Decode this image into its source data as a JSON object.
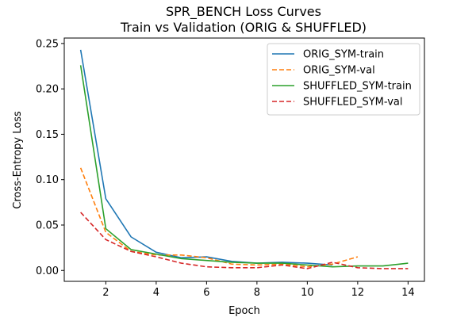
{
  "chart_data": {
    "type": "line",
    "title_line1": "SPR_BENCH Loss Curves",
    "title_line2": "Train vs Validation (ORIG & SHUFFLED)",
    "xlabel": "Epoch",
    "ylabel": "Cross-Entropy Loss",
    "xlim": [
      0.35,
      14.65
    ],
    "ylim": [
      -0.012,
      0.256
    ],
    "xticks": [
      2,
      4,
      6,
      8,
      10,
      12,
      14
    ],
    "yticks": [
      0.0,
      0.05,
      0.1,
      0.15,
      0.2,
      0.25
    ],
    "ytick_labels": [
      "0.00",
      "0.05",
      "0.10",
      "0.15",
      "0.20",
      "0.25"
    ],
    "grid": false,
    "legend_position": "upper right",
    "series": [
      {
        "name": "ORIG_SYM-train",
        "color": "#1f77b4",
        "dash": "solid",
        "x": [
          1,
          2,
          3,
          4,
          5,
          6,
          7,
          8,
          9,
          10,
          11
        ],
        "y": [
          0.243,
          0.079,
          0.037,
          0.02,
          0.014,
          0.015,
          0.01,
          0.008,
          0.009,
          0.008,
          0.006
        ]
      },
      {
        "name": "ORIG_SYM-val",
        "color": "#ff7f0e",
        "dash": "dashed",
        "x": [
          1,
          2,
          3,
          4,
          5,
          6,
          7,
          8,
          9,
          10,
          11,
          12
        ],
        "y": [
          0.113,
          0.042,
          0.021,
          0.017,
          0.017,
          0.014,
          0.007,
          0.006,
          0.007,
          0.004,
          0.007,
          0.015
        ]
      },
      {
        "name": "SHUFFLED_SYM-train",
        "color": "#2ca02c",
        "dash": "solid",
        "x": [
          1,
          2,
          3,
          4,
          5,
          6,
          7,
          8,
          9,
          10,
          11,
          12,
          13,
          14
        ],
        "y": [
          0.226,
          0.046,
          0.023,
          0.018,
          0.013,
          0.011,
          0.009,
          0.008,
          0.008,
          0.006,
          0.004,
          0.005,
          0.005,
          0.008
        ]
      },
      {
        "name": "SHUFFLED_SYM-val",
        "color": "#d62728",
        "dash": "dashed",
        "x": [
          1,
          2,
          3,
          4,
          5,
          6,
          7,
          8,
          9,
          10,
          11,
          12,
          13,
          14
        ],
        "y": [
          0.064,
          0.034,
          0.021,
          0.015,
          0.008,
          0.004,
          0.003,
          0.003,
          0.006,
          0.002,
          0.009,
          0.003,
          0.002,
          0.002
        ]
      }
    ]
  }
}
